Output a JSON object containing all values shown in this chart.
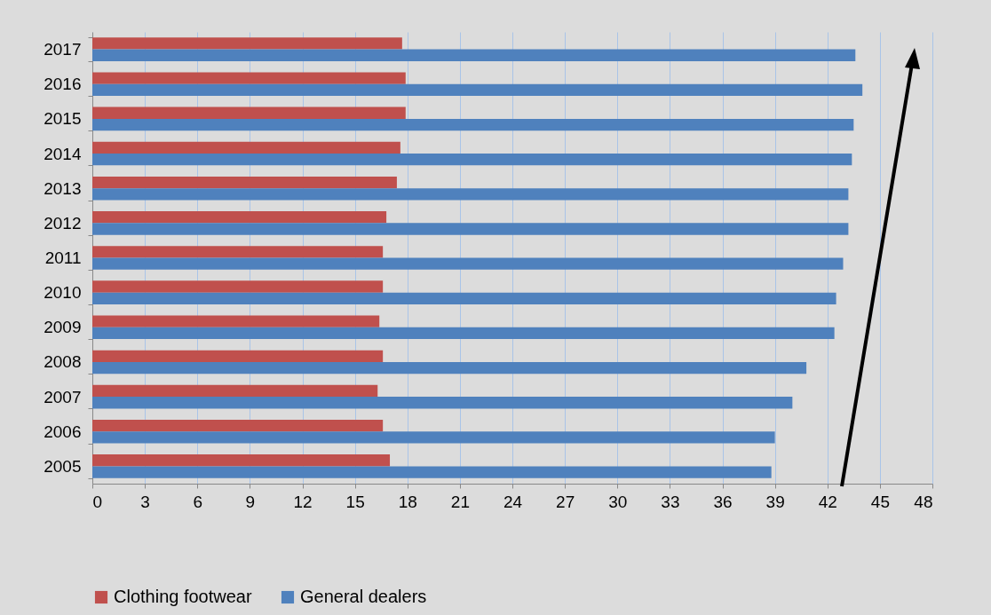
{
  "chart_data": {
    "type": "bar",
    "orientation": "horizontal",
    "categories": [
      "2017",
      "2016",
      "2015",
      "2014",
      "2013",
      "2012",
      "2011",
      "2010",
      "2009",
      "2008",
      "2007",
      "2006",
      "2005"
    ],
    "series": [
      {
        "name": "Clothing footwear",
        "color": "#c0504d",
        "values": [
          17.7,
          17.9,
          17.9,
          17.6,
          17.4,
          16.8,
          16.6,
          16.6,
          16.4,
          16.6,
          16.3,
          16.6,
          17.0
        ]
      },
      {
        "name": "General dealers",
        "color": "#4f81bd",
        "values": [
          43.6,
          44.0,
          43.5,
          43.4,
          43.2,
          43.2,
          42.9,
          42.5,
          42.4,
          40.8,
          40.0,
          39.0,
          38.8
        ]
      }
    ],
    "xlim": [
      0,
      48
    ],
    "xticks": [
      0,
      3,
      6,
      9,
      12,
      15,
      18,
      21,
      24,
      27,
      30,
      33,
      36,
      39,
      42,
      45,
      48
    ],
    "grid": "x",
    "legend": "bottom"
  }
}
